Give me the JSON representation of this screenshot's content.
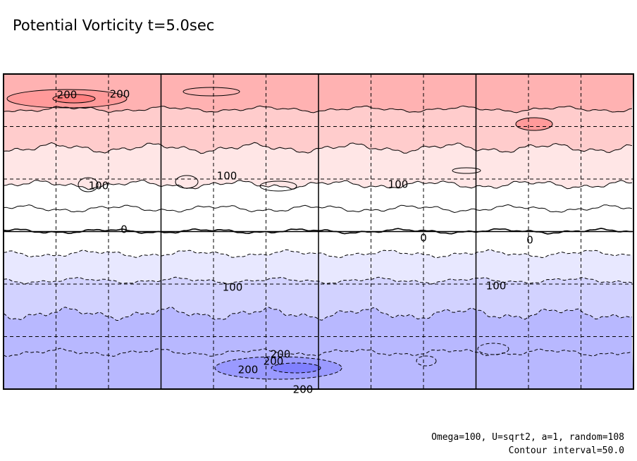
{
  "chart_data": {
    "type": "contour",
    "title": "Potential Vorticity t=5.0sec",
    "xlabel": "",
    "ylabel": "",
    "contour_interval": 50.0,
    "grid": true,
    "grid_style": "dashed",
    "bands": [
      {
        "level_min": 200,
        "level_max": 250,
        "color": "#ff9a9a"
      },
      {
        "level_min": 150,
        "level_max": 200,
        "color": "#ffb2b2"
      },
      {
        "level_min": 100,
        "level_max": 150,
        "color": "#ffcccc"
      },
      {
        "level_min": 50,
        "level_max": 100,
        "color": "#ffe6e6"
      },
      {
        "level_min": 0,
        "level_max": 50,
        "color": "#ffffff"
      },
      {
        "level_min": -50,
        "level_max": 0,
        "color": "#ffffff"
      },
      {
        "level_min": -100,
        "level_max": -50,
        "color": "#e8e8ff"
      },
      {
        "level_min": -150,
        "level_max": -100,
        "color": "#d2d2ff"
      },
      {
        "level_min": -200,
        "level_max": -150,
        "color": "#b8b8ff"
      },
      {
        "level_min": -250,
        "level_max": -200,
        "color": "#9a9aff"
      }
    ],
    "contour_labels": [
      {
        "text": "200",
        "sign": "positive"
      },
      {
        "text": "200",
        "sign": "positive"
      },
      {
        "text": "100",
        "sign": "positive"
      },
      {
        "text": "100",
        "sign": "positive"
      },
      {
        "text": "100",
        "sign": "positive"
      },
      {
        "text": "0",
        "sign": "zero"
      },
      {
        "text": "0",
        "sign": "zero"
      },
      {
        "text": "0",
        "sign": "zero"
      },
      {
        "text": "100",
        "sign": "negative"
      },
      {
        "text": "100",
        "sign": "negative"
      },
      {
        "text": "200",
        "sign": "negative"
      },
      {
        "text": "200",
        "sign": "negative"
      },
      {
        "text": "200",
        "sign": "negative"
      },
      {
        "text": "200",
        "sign": "negative"
      }
    ]
  },
  "annotations": {
    "params": "Omega=100, U=sqrt2, a=1, random=108",
    "contour_interval_text": "Contour interval=50.0"
  }
}
